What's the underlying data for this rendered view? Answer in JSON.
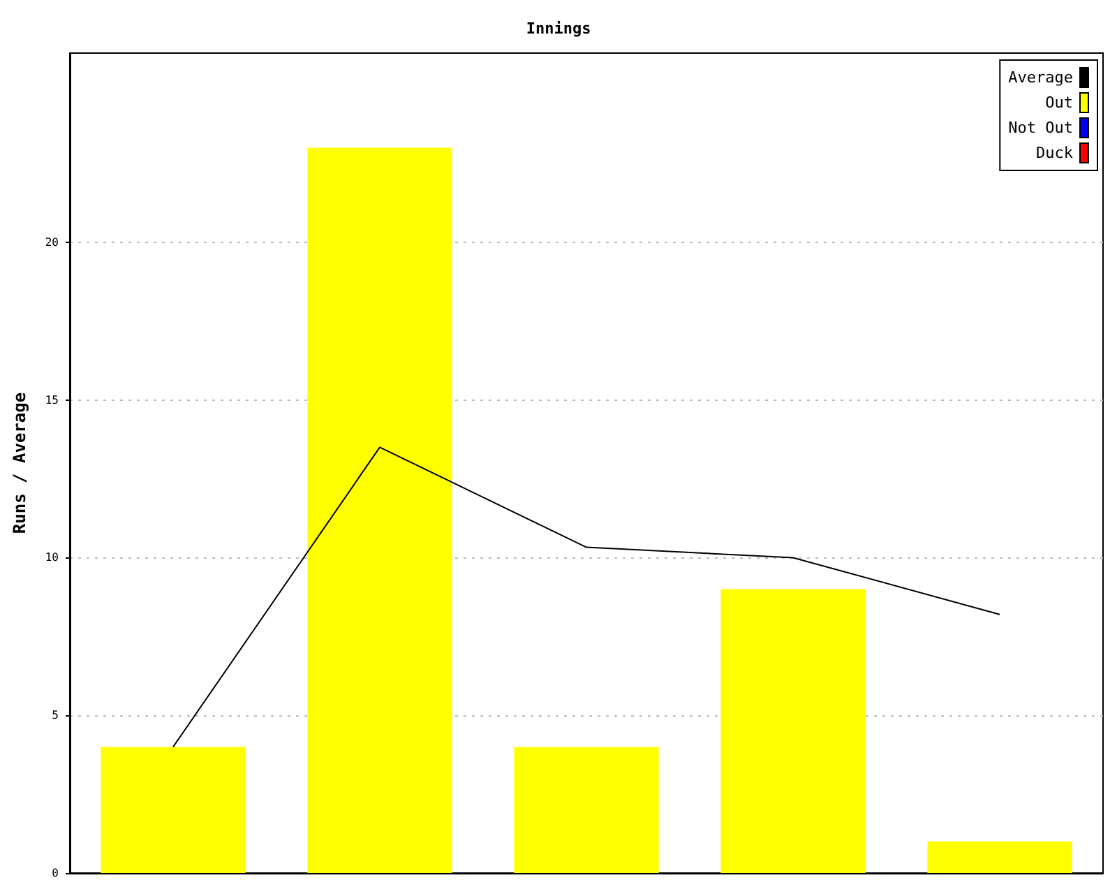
{
  "chart_data": {
    "type": "bar",
    "title": "Innings",
    "ylabel": "Runs / Average",
    "categories": [
      null,
      null,
      null,
      null,
      null
    ],
    "series": [
      {
        "name": "Average",
        "type": "line",
        "color": "#000000",
        "values": [
          4,
          13.5,
          10.33,
          10,
          8.2
        ]
      },
      {
        "name": "Out",
        "color": "#ffff00",
        "values": [
          4,
          23,
          4,
          9,
          1
        ]
      },
      {
        "name": "Not Out",
        "color": "#0000ff",
        "values": [
          null,
          null,
          null,
          null,
          null
        ]
      },
      {
        "name": "Duck",
        "color": "#ff0000",
        "values": [
          null,
          null,
          null,
          null,
          null
        ]
      }
    ],
    "stacked": true,
    "ylim": [
      0,
      26
    ],
    "yticks": [
      0,
      5,
      10,
      15,
      20
    ],
    "grid": "y",
    "legend": "top right",
    "marker": "none",
    "tick_labels": "y"
  }
}
